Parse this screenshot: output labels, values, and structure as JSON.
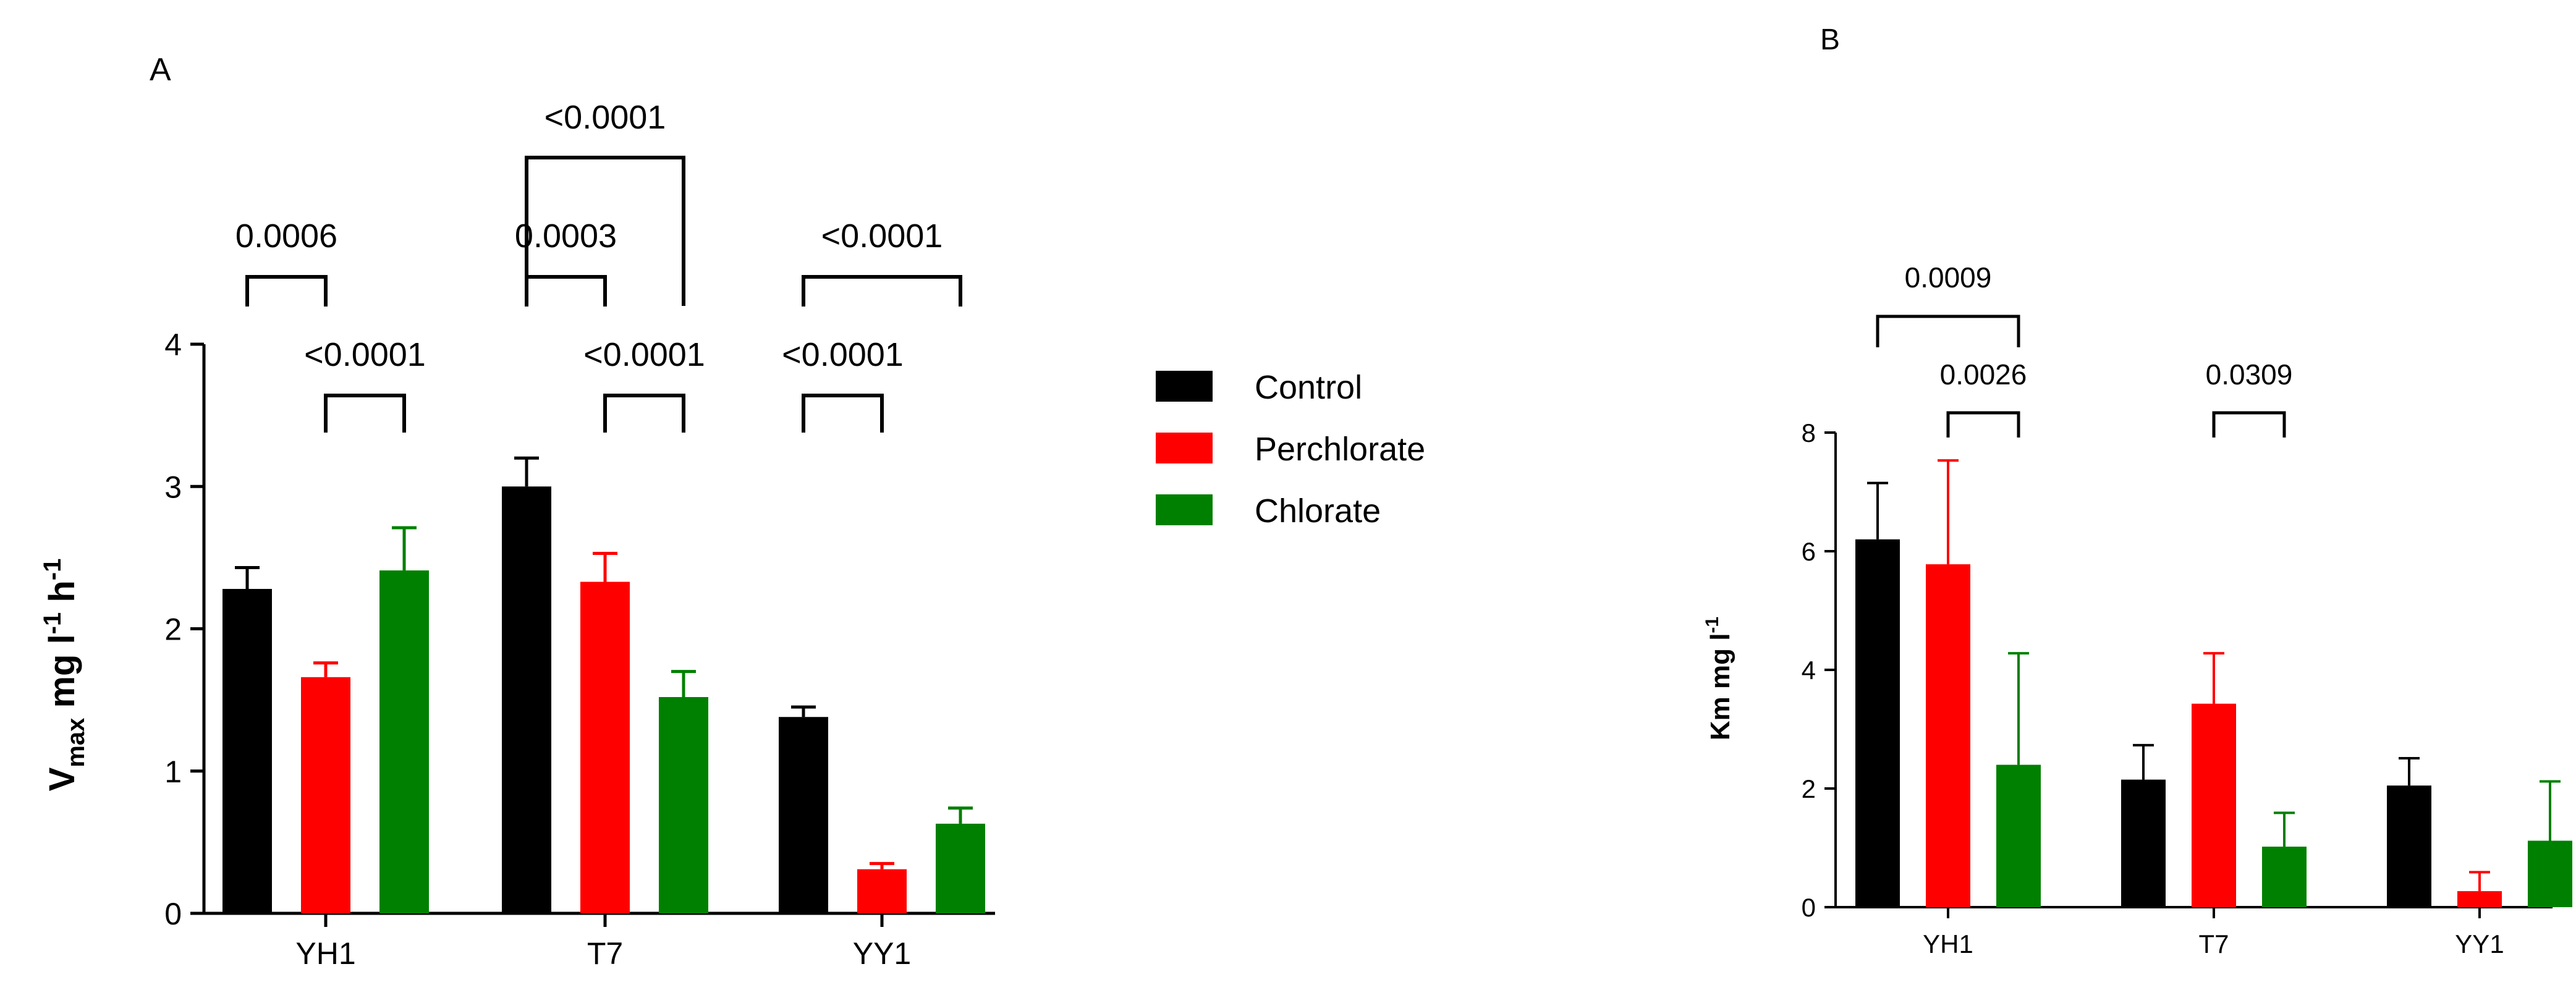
{
  "colors": {
    "Control": "#000000",
    "Perchlorate": "#ff0000",
    "Chlorate": "#008000",
    "axis": "#000000"
  },
  "legend": {
    "items": [
      {
        "label": "Control",
        "color": "#000000"
      },
      {
        "label": "Perchlorate",
        "color": "#ff0000"
      },
      {
        "label": "Chlorate",
        "color": "#008000"
      }
    ]
  },
  "chart_data": [
    {
      "panel": "A",
      "type": "bar",
      "title": "",
      "ylabel": {
        "main": "V",
        "sub": "max",
        "rest1": " mg l",
        "sup1": "-1",
        "rest2": " h",
        "sup2": "-1"
      },
      "xlabel": "",
      "categories": [
        "YH1",
        "T7",
        "YY1"
      ],
      "ylim": [
        0,
        4
      ],
      "yticks": [
        0,
        1,
        2,
        3,
        4
      ],
      "series": [
        {
          "name": "Control",
          "values": [
            2.28,
            3.0,
            1.38
          ],
          "errors": [
            0.15,
            0.2,
            0.07
          ]
        },
        {
          "name": "Perchlorate",
          "values": [
            1.66,
            2.33,
            0.31
          ],
          "errors": [
            0.1,
            0.2,
            0.04
          ]
        },
        {
          "name": "Chlorate",
          "values": [
            2.41,
            1.52,
            0.63
          ],
          "errors": [
            0.3,
            0.18,
            0.11
          ]
        }
      ],
      "comparisons": [
        {
          "group": 0,
          "from": 0,
          "to": 1,
          "label": "0.0006"
        },
        {
          "group": 0,
          "from": 1,
          "to": 2,
          "label": "<0.0001"
        },
        {
          "group": 1,
          "from": 0,
          "to": 1,
          "label": "0.0003"
        },
        {
          "group": 1,
          "from": 1,
          "to": 2,
          "label": "<0.0001"
        },
        {
          "group": 1,
          "from": 0,
          "to": 2,
          "label": "<0.0001"
        },
        {
          "group": 2,
          "from": 0,
          "to": 1,
          "label": "<0.0001"
        },
        {
          "group": 2,
          "from": 0,
          "to": 2,
          "label": "<0.0001"
        }
      ]
    },
    {
      "panel": "B",
      "type": "bar",
      "title": "",
      "ylabel": {
        "main": "Km mg l",
        "sup1": "-1"
      },
      "xlabel": "",
      "categories": [
        "YH1",
        "T7",
        "YY1"
      ],
      "ylim": [
        0,
        8
      ],
      "yticks": [
        0,
        2,
        4,
        6,
        8
      ],
      "series": [
        {
          "name": "Control",
          "values": [
            6.2,
            2.15,
            2.05
          ],
          "errors": [
            0.95,
            0.58,
            0.46
          ]
        },
        {
          "name": "Perchlorate",
          "values": [
            5.78,
            3.43,
            0.27
          ],
          "errors": [
            1.75,
            0.85,
            0.32
          ]
        },
        {
          "name": "Chlorate",
          "values": [
            2.4,
            1.02,
            1.12
          ],
          "errors": [
            1.88,
            0.57,
            1.0
          ]
        }
      ],
      "comparisons": [
        {
          "group": 0,
          "from": 0,
          "to": 2,
          "label": "0.0009"
        },
        {
          "group": 0,
          "from": 1,
          "to": 2,
          "label": "0.0026"
        },
        {
          "group": 1,
          "from": 1,
          "to": 2,
          "label": "0.0309"
        }
      ]
    }
  ]
}
